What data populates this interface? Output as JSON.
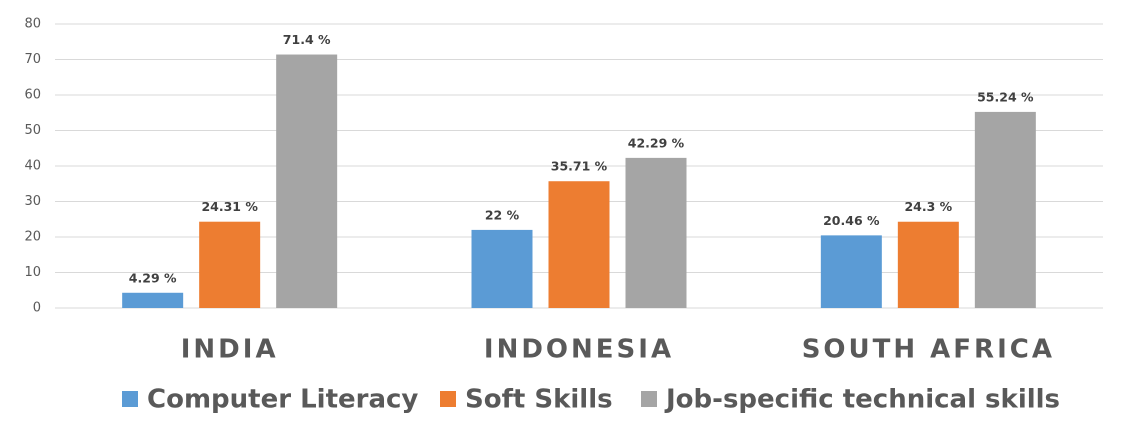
{
  "chart_data": {
    "type": "bar",
    "categories": [
      "INDIA",
      "INDONESIA",
      "SOUTH AFRICA"
    ],
    "series": [
      {
        "name": "Computer Literacy",
        "color": "#5b9bd5",
        "values": [
          4.29,
          22,
          20.46
        ],
        "value_labels": [
          "4.29 %",
          "22 %",
          "20.46 %"
        ]
      },
      {
        "name": "Soft Skills",
        "color": "#ed7d31",
        "values": [
          24.31,
          35.71,
          24.3
        ],
        "value_labels": [
          "24.31 %",
          "35.71 %",
          "24.3 %"
        ]
      },
      {
        "name": "Job-specific technical skills",
        "color": "#a5a5a5",
        "values": [
          71.4,
          42.29,
          55.24
        ],
        "value_labels": [
          "71.4 %",
          "42.29 %",
          "55.24 %"
        ]
      }
    ],
    "ylim": [
      0,
      80
    ],
    "yticks": [
      0,
      10,
      20,
      30,
      40,
      50,
      60,
      70,
      80
    ],
    "grid": true,
    "legend": "bottom"
  }
}
